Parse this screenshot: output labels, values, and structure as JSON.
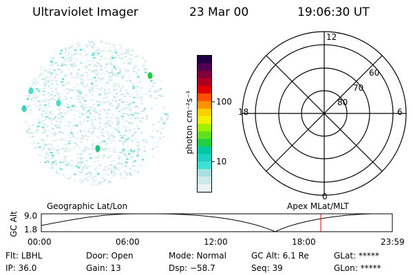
{
  "header": {
    "title": "Ultraviolet Imager",
    "date": "23 Mar 00",
    "time": "19:06:30 UT"
  },
  "colorbar": {
    "unit_label": "photon cm⁻²s⁻¹",
    "ticks": [
      "100",
      "10"
    ],
    "colors": [
      "#e8f4f4",
      "#cfe8e8",
      "#a8e0e0",
      "#40e0d0",
      "#20d0c0",
      "#00c8a0",
      "#20d040",
      "#60e020",
      "#a0f000",
      "#f0f000",
      "#ffd000",
      "#ff9000",
      "#ff5000",
      "#e00000",
      "#b00020",
      "#80003a",
      "#500050",
      "#200040"
    ]
  },
  "polar_plot": {
    "mlt_labels": {
      "top": "12",
      "left": "18",
      "right": "6",
      "bottom": "0"
    },
    "lat_labels": [
      "60",
      "70",
      "80"
    ]
  },
  "timeline": {
    "y_axis_label": "GC Alt",
    "y_ticks": [
      "9.0",
      "1.8"
    ],
    "left_title": "Geographic Lat/Lon",
    "right_title": "Apex MLat/MLT",
    "x_ticks": [
      "00:00",
      "06:00",
      "12:00",
      "18:00",
      "23:59"
    ],
    "current_time_hours": 19.11
  },
  "status": {
    "row1": [
      {
        "label": "Flt:",
        "value": "LBHL"
      },
      {
        "label": "Door:",
        "value": "Open"
      },
      {
        "label": "Mode:",
        "value": "Normal"
      },
      {
        "label": "GC Alt:",
        "value": "6.1 Re"
      },
      {
        "label": "GLat:",
        "value": "*****"
      }
    ],
    "row2": [
      {
        "label": "IP:",
        "value": "36.0"
      },
      {
        "label": "Gain:",
        "value": "13"
      },
      {
        "label": "Dsp:",
        "value": "−58.7"
      },
      {
        "label": "Seq:",
        "value": "39"
      },
      {
        "label": "GLon:",
        "value": "*****"
      }
    ]
  }
}
